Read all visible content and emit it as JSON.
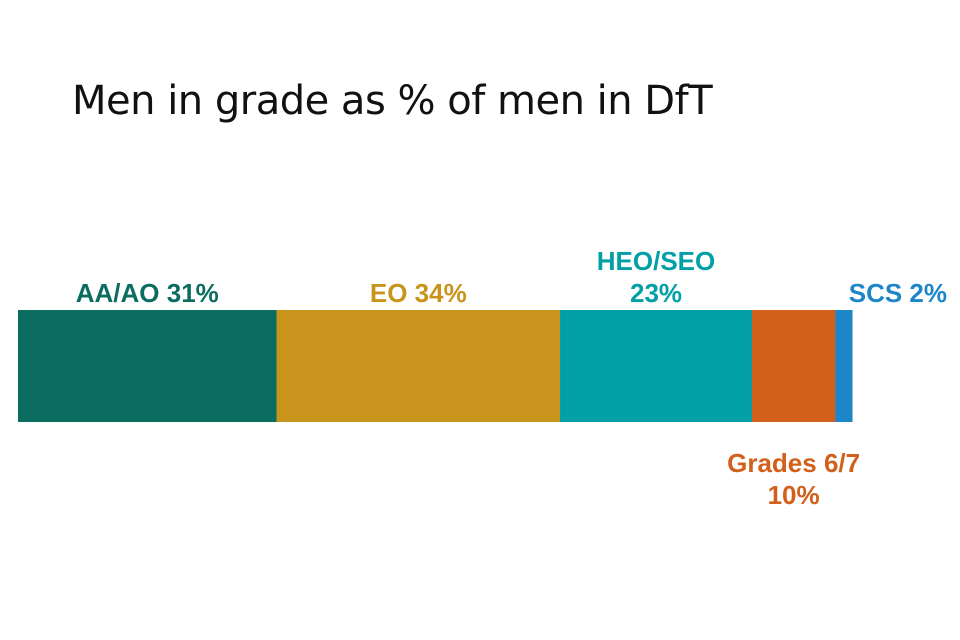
{
  "chart_data": {
    "type": "bar",
    "title": "Men in grade as % of men in DfT",
    "stacked": true,
    "orientation": "horizontal",
    "segments": [
      {
        "label": "AA/AO 31%",
        "lines": [
          "AA/AO 31%"
        ],
        "value": 31,
        "color": "#0b6d5f",
        "label_position": "above"
      },
      {
        "label": "EO 34%",
        "lines": [
          "EO 34%"
        ],
        "value": 34,
        "color": "#c9941b",
        "label_position": "above"
      },
      {
        "label": "HEO/SEO 23%",
        "lines": [
          "HEO/SEO",
          "23%"
        ],
        "value": 23,
        "color": "#00a0a6",
        "label_position": "above"
      },
      {
        "label": "Grades 6/7 10%",
        "lines": [
          "Grades 6/7",
          "10%"
        ],
        "value": 10,
        "color": "#d2601a",
        "label_position": "below"
      },
      {
        "label": "SCS 2%",
        "lines": [
          "SCS 2%"
        ],
        "value": 2,
        "color": "#1d86c8",
        "label_position": "above"
      }
    ],
    "label_colors": [
      "#0b6d5f",
      "#c9941b",
      "#00a0a6",
      "#d2601a",
      "#1d86c8"
    ]
  }
}
